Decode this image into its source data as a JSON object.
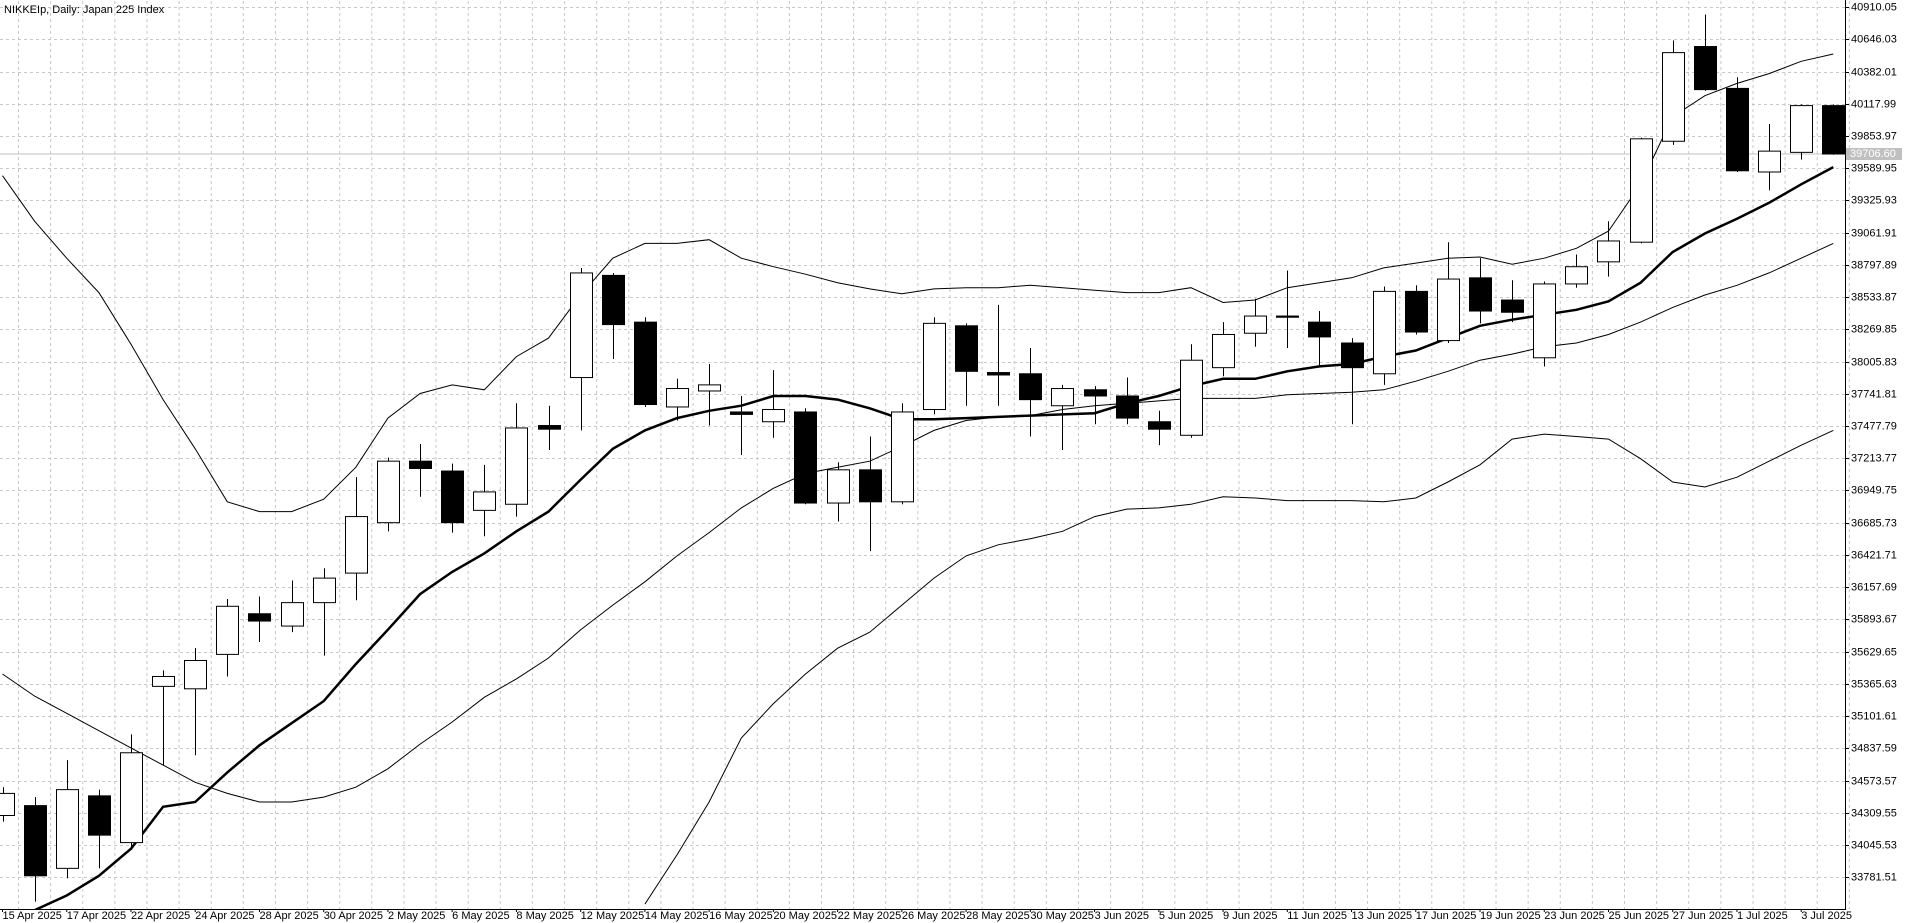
{
  "chart_data": {
    "type": "candlestick",
    "title": "NIKKEIp, Daily: Japan 225 Index",
    "categories": [
      "15 Apr 2025",
      null,
      "17 Apr 2025",
      null,
      "22 Apr 2025",
      null,
      "24 Apr 2025",
      null,
      "28 Apr 2025",
      null,
      "30 Apr 2025",
      null,
      "2 May 2025",
      null,
      "6 May 2025",
      null,
      "8 May 2025",
      null,
      "12 May 2025",
      null,
      "14 May 2025",
      null,
      "16 May 2025",
      null,
      "20 May 2025",
      null,
      "22 May 2025",
      null,
      "26 May 2025",
      null,
      "28 May 2025",
      null,
      "30 May 2025",
      null,
      "3 Jun 2025",
      null,
      "5 Jun 2025",
      null,
      "9 Jun 2025",
      null,
      "11 Jun 2025",
      null,
      "13 Jun 2025",
      null,
      "17 Jun 2025",
      null,
      "19 Jun 2025",
      null,
      "23 Jun 2025",
      null,
      "25 Jun 2025",
      null,
      "27 Jun 2025",
      null,
      "1 Jul 2025",
      null,
      "3 Jul 2025",
      null
    ],
    "open": [
      34287,
      34368,
      33854,
      34448,
      34065,
      35345,
      35325,
      35607,
      35940,
      35839,
      36031,
      36273,
      36686,
      37190,
      37109,
      36787,
      36837,
      37482,
      37875,
      38712,
      38329,
      37634,
      37765,
      37593,
      37513,
      37593,
      36847,
      37119,
      36857,
      37613,
      38299,
      37916,
      37906,
      37644,
      37775,
      37724,
      37513,
      37402,
      37956,
      38238,
      38379,
      38329,
      38158,
      37906,
      38581,
      38178,
      38692,
      38510,
      38037,
      38642,
      38823,
      38984,
      39811,
      40587,
      40244,
      39559,
      39720,
      40103
    ],
    "high": [
      34519,
      34438,
      34741,
      34499,
      34952,
      35476,
      35658,
      36061,
      36081,
      36212,
      36313,
      37059,
      37220,
      37331,
      37170,
      37160,
      37664,
      37644,
      38773,
      38732,
      38369,
      37865,
      37986,
      37724,
      37936,
      37623,
      37180,
      37392,
      37664,
      38369,
      38319,
      38470,
      38117,
      37815,
      37805,
      37875,
      37603,
      38148,
      38329,
      38521,
      38752,
      38420,
      38198,
      38621,
      38631,
      38984,
      38853,
      38672,
      38662,
      38883,
      39156,
      39841,
      40637,
      40849,
      40335,
      39952,
      40113,
      40113
    ],
    "low": [
      34237,
      33581,
      33773,
      33854,
      34015,
      34700,
      34781,
      35426,
      35708,
      35789,
      35597,
      36051,
      36615,
      36898,
      36605,
      36575,
      36736,
      37281,
      37442,
      38027,
      37634,
      37523,
      37482,
      37240,
      37382,
      36837,
      36696,
      36454,
      36837,
      37573,
      37644,
      37644,
      37392,
      37281,
      37492,
      37492,
      37321,
      37382,
      37886,
      38127,
      38117,
      37966,
      37492,
      37815,
      38228,
      38158,
      38319,
      38329,
      37966,
      38611,
      38702,
      38974,
      39781,
      40224,
      39559,
      39408,
      39660,
      39700
    ],
    "close": [
      34468,
      33793,
      34499,
      34126,
      34801,
      35426,
      35557,
      36001,
      35880,
      36031,
      36232,
      36736,
      37190,
      37130,
      36686,
      36938,
      37462,
      37452,
      38732,
      38309,
      37654,
      37785,
      37815,
      37573,
      37613,
      36847,
      37119,
      36857,
      37593,
      38319,
      37926,
      37896,
      37694,
      37785,
      37724,
      37543,
      37452,
      38017,
      38228,
      38379,
      38369,
      38208,
      37956,
      38581,
      38248,
      38682,
      38420,
      38410,
      38642,
      38783,
      38994,
      39831,
      40537,
      40234,
      39569,
      39730,
      40103,
      39706.6
    ],
    "up_color": "#ffffff",
    "down_color": "#000000",
    "outline_color": "#000000",
    "lines": [
      {
        "color": "#000000",
        "width": 1,
        "values": [
          39529,
          39156,
          38853,
          38571,
          38148,
          37694,
          37291,
          36857,
          36777,
          36777,
          36878,
          37140,
          37543,
          37744,
          37815,
          37775,
          38047,
          38198,
          38551,
          38853,
          38974,
          38974,
          39004,
          38853,
          38783,
          38722,
          38652,
          38601,
          38561,
          38601,
          38611,
          38611,
          38631,
          38611,
          38591,
          38571,
          38571,
          38611,
          38490,
          38510,
          38611,
          38652,
          38692,
          38773,
          38813,
          38853,
          38863,
          38803,
          38853,
          38934,
          39075,
          39458,
          40012,
          40184,
          40285,
          40365,
          40466,
          40526
        ]
      },
      {
        "color": "#000000",
        "width": 1,
        "values": [
          35446,
          35265,
          35124,
          34982,
          34841,
          34700,
          34559,
          34468,
          34398,
          34398,
          34438,
          34519,
          34670,
          34872,
          35053,
          35255,
          35406,
          35577,
          35809,
          36011,
          36202,
          36414,
          36605,
          36807,
          36968,
          37089,
          37140,
          37190,
          37311,
          37442,
          37523,
          37553,
          37563,
          37613,
          37644,
          37664,
          37684,
          37704,
          37704,
          37704,
          37734,
          37744,
          37754,
          37775,
          37845,
          37926,
          38017,
          38067,
          38127,
          38158,
          38228,
          38329,
          38450,
          38551,
          38631,
          38732,
          38853,
          38974
        ]
      },
      {
        "color": "#000000",
        "width": 1,
        "values": [
          null,
          null,
          null,
          null,
          null,
          null,
          null,
          null,
          null,
          null,
          null,
          null,
          null,
          null,
          null,
          null,
          null,
          null,
          null,
          null,
          33561,
          33964,
          34398,
          34922,
          35204,
          35446,
          35658,
          35789,
          36011,
          36232,
          36414,
          36505,
          36555,
          36615,
          36736,
          36797,
          36807,
          36837,
          36898,
          36888,
          36867,
          36867,
          36867,
          36857,
          36888,
          37019,
          37160,
          37371,
          37412,
          37392,
          37371,
          37210,
          37019,
          36978,
          37059,
          37190,
          37321,
          37442
        ]
      },
      {
        "color": "#000000",
        "width": 2.5,
        "values": [
          33460,
          33511,
          33632,
          33793,
          34015,
          34358,
          34398,
          34640,
          34862,
          35043,
          35224,
          35527,
          35809,
          36101,
          36283,
          36434,
          36615,
          36777,
          37039,
          37291,
          37442,
          37543,
          37603,
          37644,
          37724,
          37724,
          37694,
          37623,
          37533,
          37533,
          37543,
          37553,
          37563,
          37573,
          37583,
          37664,
          37724,
          37805,
          37865,
          37865,
          37926,
          37966,
          37986,
          38047,
          38097,
          38198,
          38299,
          38349,
          38390,
          38430,
          38500,
          38652,
          38904,
          39055,
          39176,
          39307,
          39458,
          39599
        ]
      }
    ],
    "last_price": {
      "value": 39706.6,
      "label": "39706.60"
    },
    "last_price_color": "#c0c0c0",
    "ylim": [
      33521,
      40960
    ],
    "yticks": [
      33781.51,
      34045.53,
      34309.55,
      34573.57,
      34837.59,
      35101.61,
      35365.63,
      35629.65,
      35893.67,
      36157.69,
      36421.71,
      36685.73,
      36949.75,
      37213.77,
      37477.79,
      37741.81,
      38005.83,
      38269.85,
      38533.87,
      38797.89,
      39061.91,
      39325.93,
      39589.95,
      39853.97,
      40117.99,
      40382.01,
      40646.03,
      40910.05
    ],
    "grid": true
  }
}
